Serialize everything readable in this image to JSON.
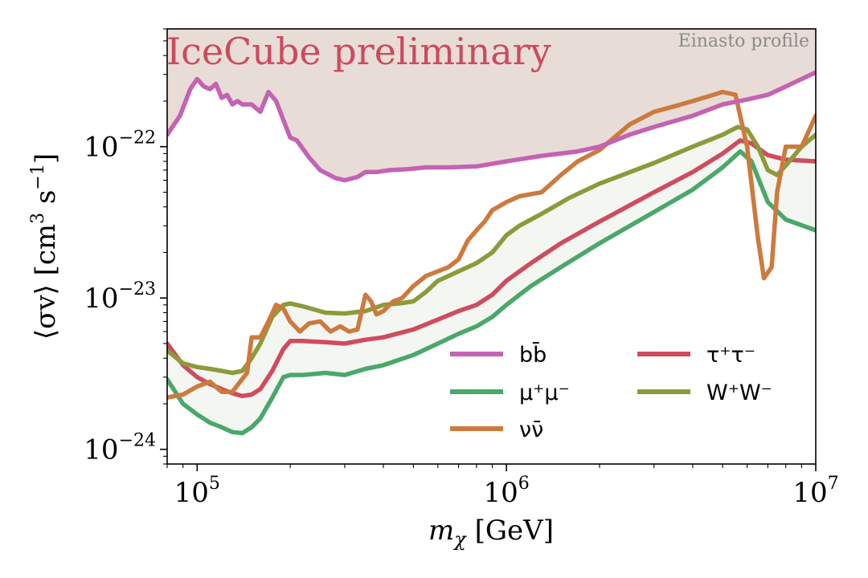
{
  "chart_data": {
    "type": "line",
    "annotation": "IceCube preliminary",
    "profile_label": "Einasto profile",
    "xlabel_parts": {
      "m": "m",
      "sub": "χ",
      "rest": " [GeV]"
    },
    "ylabel_parts": {
      "pre": "⟨σv⟩ [cm",
      "sup3": "3",
      "mid": " s",
      "supneg": "−1",
      "post": "]"
    },
    "xscale": "log",
    "yscale": "log",
    "xlim": [
      80000,
      10000000
    ],
    "ylim": [
      8e-25,
      6e-22
    ],
    "grid": false,
    "legend_position": "lower-right",
    "x_ticks": [
      {
        "value": 100000,
        "base": "10",
        "exp": "5"
      },
      {
        "value": 1000000,
        "base": "10",
        "exp": "6"
      },
      {
        "value": 10000000,
        "base": "10",
        "exp": "7"
      }
    ],
    "y_ticks": [
      {
        "value": 1e-24,
        "base": "10",
        "exp": "−24"
      },
      {
        "value": 1e-23,
        "base": "10",
        "exp": "−23"
      },
      {
        "value": 1e-22,
        "base": "10",
        "exp": "−22"
      }
    ],
    "colors": {
      "excluded_region": "#e8ddd6",
      "band_region": "#f4f6f1",
      "annotation": "#cc4a5e",
      "profile_label": "#8a8a8a"
    },
    "series": [
      {
        "name": "bb̄",
        "color": "#c462b3",
        "x": [
          80000,
          88000,
          95000,
          100000,
          105000,
          110000,
          115000,
          120000,
          125000,
          130000,
          135000,
          140000,
          150000,
          160000,
          170000,
          180000,
          190000,
          200000,
          210000,
          230000,
          250000,
          280000,
          300000,
          330000,
          350000,
          380000,
          420000,
          480000,
          550000,
          650000,
          800000,
          1000000,
          1300000,
          1700000,
          2000000,
          2500000,
          3000000,
          4000000,
          5000000,
          6000000,
          7000000,
          8000000,
          10000000
        ],
        "y": [
          1.2e-22,
          1.6e-22,
          2.4e-22,
          2.8e-22,
          2.5e-22,
          2.4e-22,
          2.6e-22,
          2.1e-22,
          2.2e-22,
          1.9e-22,
          2e-22,
          1.9e-22,
          1.9e-22,
          1.7e-22,
          2.3e-22,
          2e-22,
          1.5e-22,
          1.15e-22,
          1.1e-22,
          8.5e-23,
          7e-23,
          6.2e-23,
          6e-23,
          6.3e-23,
          6.8e-23,
          6.8e-23,
          7e-23,
          7.1e-23,
          7.3e-23,
          7.3e-23,
          7.4e-23,
          8e-23,
          8.7e-23,
          9.3e-23,
          1e-22,
          1.2e-22,
          1.35e-22,
          1.6e-22,
          1.9e-22,
          2.05e-22,
          2.2e-22,
          2.5e-22,
          3.1e-22
        ]
      },
      {
        "name": "μ⁺μ⁻",
        "color": "#4aa86a",
        "x": [
          80000,
          90000,
          100000,
          110000,
          120000,
          130000,
          140000,
          150000,
          160000,
          175000,
          190000,
          200000,
          220000,
          260000,
          300000,
          350000,
          400000,
          500000,
          600000,
          700000,
          800000,
          900000,
          1000000,
          1200000,
          1500000,
          2000000,
          3000000,
          4000000,
          5000000,
          5700000,
          6200000,
          7000000,
          8000000,
          10000000
        ],
        "y": [
          2.9e-24,
          2e-24,
          1.7e-24,
          1.5e-24,
          1.4e-24,
          1.3e-24,
          1.28e-24,
          1.4e-24,
          1.6e-24,
          2.2e-24,
          3e-24,
          3.1e-24,
          3.1e-24,
          3.2e-24,
          3.1e-24,
          3.4e-24,
          3.6e-24,
          4.2e-24,
          5e-24,
          5.8e-24,
          6.5e-24,
          7.5e-24,
          9e-24,
          1.2e-23,
          1.6e-23,
          2.3e-23,
          3.7e-23,
          5.2e-23,
          7.3e-23,
          9.3e-23,
          8e-23,
          4.3e-23,
          3.3e-23,
          2.8e-23
        ]
      },
      {
        "name": "νν̄",
        "color": "#cd7a3e",
        "x": [
          80000,
          90000,
          100000,
          110000,
          120000,
          130000,
          145000,
          150000,
          160000,
          170000,
          180000,
          190000,
          200000,
          215000,
          230000,
          250000,
          270000,
          290000,
          310000,
          330000,
          350000,
          365000,
          380000,
          400000,
          430000,
          460000,
          500000,
          550000,
          600000,
          650000,
          700000,
          750000,
          800000,
          850000,
          900000,
          1000000,
          1100000,
          1300000,
          1500000,
          1700000,
          2000000,
          2500000,
          3000000,
          3500000,
          4000000,
          4500000,
          5000000,
          5500000,
          6000000,
          6500000,
          6800000,
          7200000,
          7500000,
          8000000,
          9000000,
          10000000
        ],
        "y": [
          2.2e-24,
          2.3e-24,
          2.6e-24,
          2.8e-24,
          2.4e-24,
          2.4e-24,
          3.2e-24,
          5.5e-24,
          5.5e-24,
          7e-24,
          9e-24,
          8.5e-24,
          7e-24,
          6e-24,
          6.8e-24,
          7e-24,
          6e-24,
          6.5e-24,
          6e-24,
          6.2e-24,
          1.05e-23,
          9.5e-24,
          7.8e-24,
          8.2e-24,
          9.5e-24,
          1e-23,
          1.2e-23,
          1.4e-23,
          1.5e-23,
          1.6e-23,
          1.8e-23,
          2.4e-23,
          2.8e-23,
          3.2e-23,
          3.8e-23,
          4.3e-23,
          4.7e-23,
          5e-23,
          6.5e-23,
          8e-23,
          9.5e-23,
          1.4e-22,
          1.7e-22,
          1.85e-22,
          2e-22,
          2.15e-22,
          2.3e-22,
          2.2e-22,
          1e-22,
          2.5e-23,
          1.35e-23,
          1.6e-23,
          5e-23,
          1e-22,
          1e-22,
          1.6e-22
        ]
      },
      {
        "name": "τ⁺τ⁻",
        "color": "#cf4c5e",
        "x": [
          80000,
          90000,
          100000,
          110000,
          120000,
          130000,
          140000,
          150000,
          160000,
          175000,
          190000,
          200000,
          220000,
          260000,
          300000,
          350000,
          400000,
          500000,
          600000,
          700000,
          800000,
          900000,
          1000000,
          1200000,
          1500000,
          2000000,
          3000000,
          4000000,
          5000000,
          5700000,
          6200000,
          7000000,
          8000000,
          10000000
        ],
        "y": [
          5e-24,
          3.6e-24,
          3e-24,
          2.7e-24,
          2.5e-24,
          2.35e-24,
          2.25e-24,
          2.3e-24,
          2.5e-24,
          3.3e-24,
          4.6e-24,
          5.2e-24,
          5.2e-24,
          5.1e-24,
          5e-24,
          5.3e-24,
          5.5e-24,
          6.2e-24,
          7.2e-24,
          8.2e-24,
          9e-24,
          1.05e-23,
          1.3e-23,
          1.7e-23,
          2.3e-23,
          3.2e-23,
          5e-23,
          6.8e-23,
          9e-23,
          1.1e-22,
          1.05e-22,
          8.8e-23,
          8.2e-23,
          8e-23
        ]
      },
      {
        "name": "W⁺W⁻",
        "color": "#8d9a3b",
        "x": [
          80000,
          90000,
          100000,
          110000,
          120000,
          130000,
          140000,
          150000,
          160000,
          175000,
          190000,
          200000,
          220000,
          260000,
          300000,
          350000,
          400000,
          450000,
          500000,
          550000,
          600000,
          650000,
          700000,
          800000,
          900000,
          1000000,
          1100000,
          1300000,
          1600000,
          2000000,
          3000000,
          4000000,
          5000000,
          5600000,
          6000000,
          6500000,
          7000000,
          7500000,
          8000000,
          9000000,
          10000000
        ],
        "y": [
          4.5e-24,
          3.7e-24,
          3.5e-24,
          3.4e-24,
          3.3e-24,
          3.2e-24,
          3.3e-24,
          4e-24,
          5e-24,
          7.5e-24,
          9e-24,
          9.2e-24,
          8.8e-24,
          8e-24,
          7.9e-24,
          8.2e-24,
          9e-24,
          9.2e-24,
          9.5e-24,
          1.1e-23,
          1.3e-23,
          1.4e-23,
          1.5e-23,
          1.7e-23,
          2e-23,
          2.6e-23,
          3e-23,
          3.6e-23,
          4.6e-23,
          5.7e-23,
          7.8e-23,
          1e-22,
          1.2e-22,
          1.35e-22,
          1.3e-22,
          1e-22,
          7e-23,
          6.5e-23,
          7.5e-23,
          1e-22,
          1.2e-22
        ]
      }
    ],
    "band": {
      "x": [
        80000,
        100000,
        120000,
        140000,
        160000,
        190000,
        220000,
        300000,
        400000,
        500000,
        600000,
        800000,
        1000000,
        1500000,
        2000000,
        3000000,
        4000000,
        5000000,
        5700000,
        6500000,
        8000000,
        10000000
      ],
      "lower": [
        2.9e-24,
        1.7e-24,
        1.4e-24,
        1.28e-24,
        1.6e-24,
        3e-24,
        3.1e-24,
        3.1e-24,
        3.6e-24,
        4.2e-24,
        5e-24,
        6.5e-24,
        9e-24,
        1.6e-23,
        2.3e-23,
        3.7e-23,
        5.2e-23,
        7.3e-23,
        9.3e-23,
        5.5e-23,
        3.3e-23,
        2.8e-23
      ],
      "upper": [
        5e-24,
        3.5e-24,
        3.3e-24,
        3.3e-24,
        5e-24,
        9e-24,
        8.8e-24,
        7.9e-24,
        9e-24,
        9.5e-24,
        1.3e-23,
        1.7e-23,
        2.6e-23,
        4.2e-23,
        5.7e-23,
        7.8e-23,
        1e-22,
        1.2e-22,
        1.35e-22,
        1e-22,
        7.5e-23,
        1.2e-22
      ]
    },
    "legend_layout": [
      [
        "bb̄",
        "τ⁺τ⁻"
      ],
      [
        "μ⁺μ⁻",
        "W⁺W⁻"
      ],
      [
        "νν̄"
      ]
    ]
  }
}
